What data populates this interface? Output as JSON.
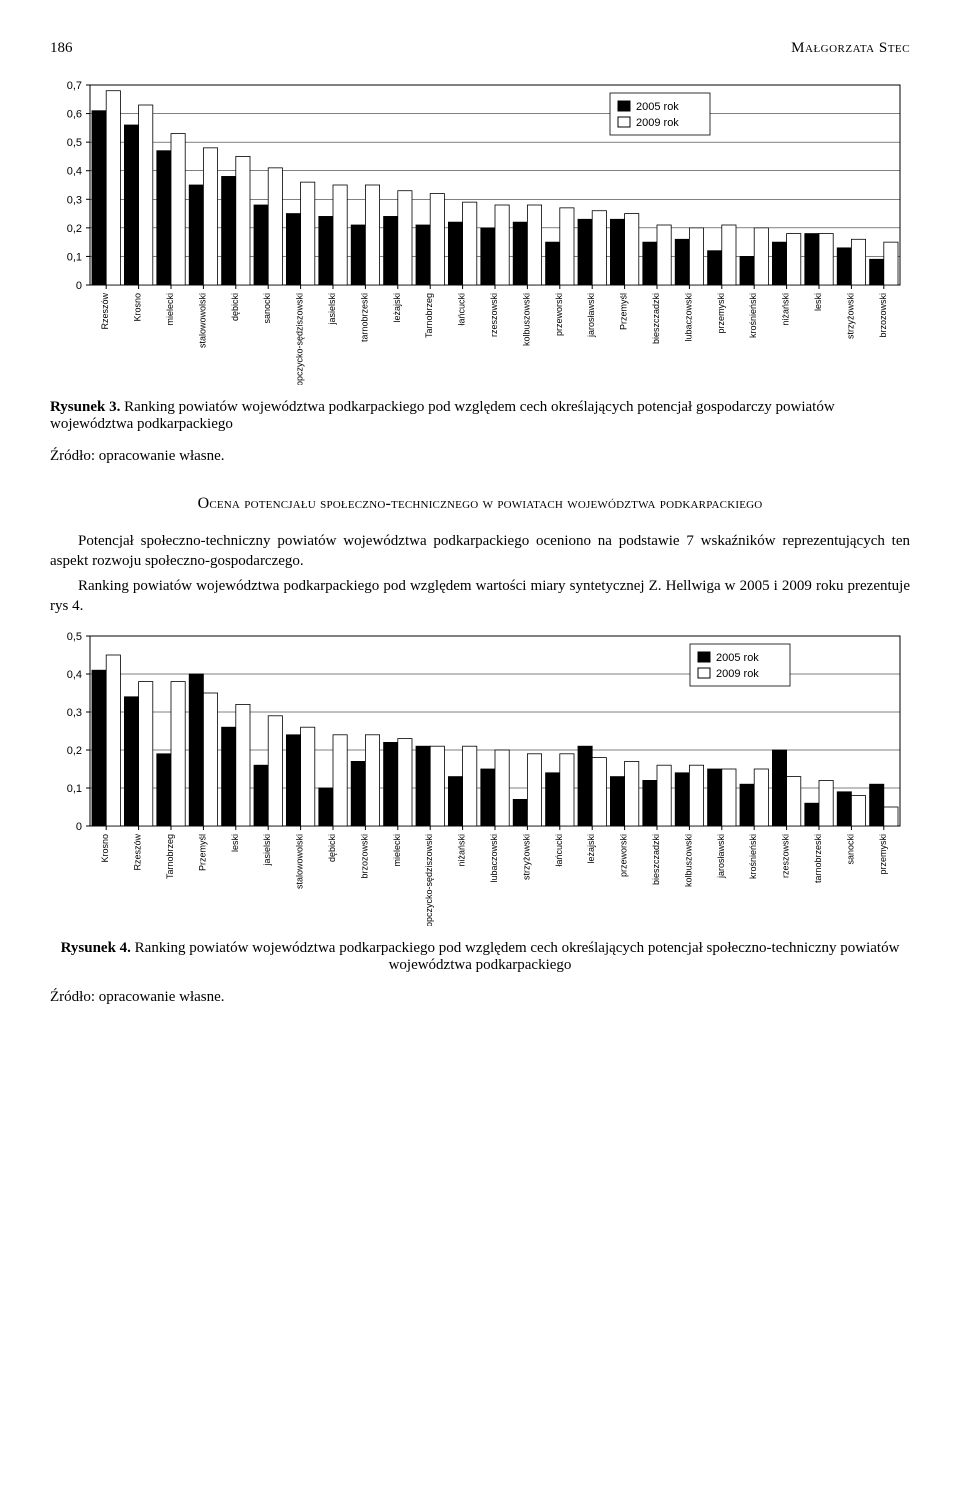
{
  "page_number": "186",
  "author_header": "Małgorzata Stec",
  "legend": {
    "a": "2005 rok",
    "b": "2009 rok"
  },
  "chart1": {
    "type": "bar",
    "ylim": [
      0,
      0.7
    ],
    "ytick_step": 0.1,
    "yticks_text": [
      "0",
      "0,1",
      "0,2",
      "0,3",
      "0,4",
      "0,5",
      "0,6",
      "0,7"
    ],
    "bar_fill_2005": "#000000",
    "bar_fill_2009": "#ffffff",
    "bar_stroke": "#000000",
    "gridline_color": "#000000",
    "background_color": "#ffffff",
    "label_fontsize": 9,
    "tick_fontsize": 11,
    "bar_group_gap": 4,
    "categories": [
      "Rzeszów",
      "Krosno",
      "mielecki",
      "stalowowolski",
      "dębicki",
      "sanocki",
      "ropczycko-sędziszowski",
      "jasielski",
      "tarnobrzeski",
      "leżajski",
      "Tarnobrzeg",
      "łańcucki",
      "rzeszowski",
      "kolbuszowski",
      "przeworski",
      "jarosławski",
      "Przemyśl",
      "bieszczadzki",
      "lubaczowski",
      "przemyski",
      "krośnieński",
      "niżański",
      "leski",
      "strzyżowski",
      "brzozowski"
    ],
    "v2005": [
      0.61,
      0.56,
      0.47,
      0.35,
      0.38,
      0.28,
      0.25,
      0.24,
      0.21,
      0.24,
      0.21,
      0.22,
      0.2,
      0.22,
      0.15,
      0.23,
      0.23,
      0.15,
      0.16,
      0.12,
      0.1,
      0.15,
      0.18,
      0.13,
      0.09
    ],
    "v2009": [
      0.68,
      0.63,
      0.53,
      0.48,
      0.45,
      0.41,
      0.36,
      0.35,
      0.35,
      0.33,
      0.32,
      0.29,
      0.28,
      0.28,
      0.27,
      0.26,
      0.25,
      0.21,
      0.2,
      0.21,
      0.2,
      0.18,
      0.18,
      0.16,
      0.15
    ]
  },
  "fig3_lead": "Rysunek 3.",
  "fig3_text": " Ranking powiatów województwa podkarpackiego pod względem cech określających potencjał gospodarczy powiatów województwa podkarpackiego",
  "source_text": "Źródło: opracowanie własne.",
  "section_title": "Ocena potencjału społeczno-technicznego w powiatach województwa podkarpackiego",
  "para1": "Potencjał społeczno-techniczny powiatów województwa podkarpackiego oceniono na podstawie 7 wskaźników reprezentujących ten aspekt rozwoju społeczno-gospodarczego.",
  "para2": "Ranking powiatów województwa podkarpackiego pod względem wartości miary syntetycznej Z. Hellwiga w 2005 i 2009 roku prezentuje rys 4.",
  "chart2": {
    "type": "bar",
    "ylim": [
      0,
      0.5
    ],
    "ytick_step": 0.1,
    "yticks_text": [
      "0",
      "0,1",
      "0,2",
      "0,3",
      "0,4",
      "0,5"
    ],
    "bar_fill_2005": "#000000",
    "bar_fill_2009": "#ffffff",
    "bar_stroke": "#000000",
    "gridline_color": "#000000",
    "background_color": "#ffffff",
    "label_fontsize": 9,
    "tick_fontsize": 11,
    "bar_group_gap": 4,
    "categories": [
      "Krosno",
      "Rzeszów",
      "Tarnobrzeg",
      "Przemyśl",
      "leski",
      "jasielski",
      "stalowowolski",
      "dębicki",
      "brzozowski",
      "mielecki",
      "ropczycko-sędziszowski",
      "niżański",
      "lubaczowski",
      "strzyżowski",
      "łańcucki",
      "leżajski",
      "przeworski",
      "bieszczadzki",
      "kolbuszowski",
      "jarosławski",
      "krośnieński",
      "rzeszowski",
      "tarnobrzeski",
      "sanocki",
      "przemyski"
    ],
    "v2005": [
      0.41,
      0.34,
      0.19,
      0.4,
      0.26,
      0.16,
      0.24,
      0.1,
      0.17,
      0.22,
      0.21,
      0.13,
      0.15,
      0.07,
      0.14,
      0.21,
      0.13,
      0.12,
      0.14,
      0.15,
      0.11,
      0.2,
      0.06,
      0.09,
      0.11
    ],
    "v2009": [
      0.45,
      0.38,
      0.38,
      0.35,
      0.32,
      0.29,
      0.26,
      0.24,
      0.24,
      0.23,
      0.21,
      0.21,
      0.2,
      0.19,
      0.19,
      0.18,
      0.17,
      0.16,
      0.16,
      0.15,
      0.15,
      0.13,
      0.12,
      0.08,
      0.05
    ]
  },
  "fig4_lead": "Rysunek 4.",
  "fig4_text": " Ranking powiatów województwa podkarpackiego pod względem cech określających potencjał społeczno-techniczny powiatów województwa podkarpackiego"
}
